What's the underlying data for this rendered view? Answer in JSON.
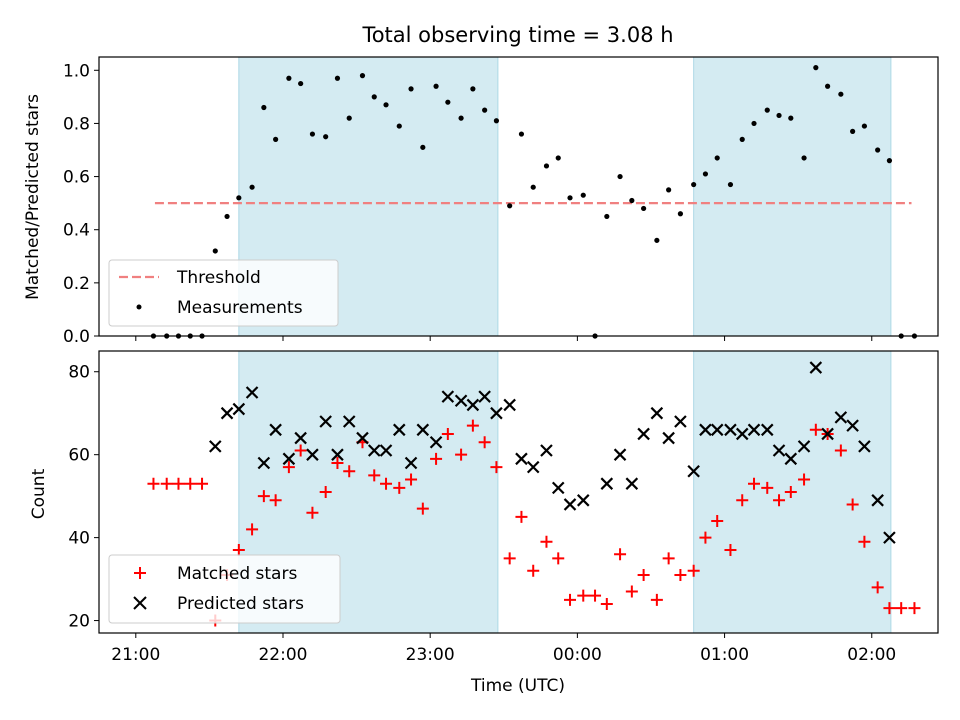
{
  "chart_data": {
    "title": "Total observing time = 3.08 h",
    "xlabel": "Time (UTC)",
    "x_unit": "hours since 21:00 UTC",
    "xlim": [
      -0.25,
      5.45
    ],
    "x_ticks": [
      {
        "value": 0,
        "label": "21:00"
      },
      {
        "value": 1,
        "label": "22:00"
      },
      {
        "value": 2,
        "label": "23:00"
      },
      {
        "value": 3,
        "label": "00:00"
      },
      {
        "value": 4,
        "label": "01:00"
      },
      {
        "value": 5,
        "label": "02:00"
      }
    ],
    "shaded_intervals": [
      [
        0.7,
        2.46
      ],
      [
        3.79,
        5.13
      ]
    ],
    "shade_color": "#add8e6",
    "panels": [
      {
        "type": "scatter",
        "ylabel": "Matched/Predicted stars",
        "ylim": [
          0,
          1.05
        ],
        "y_ticks": [
          0.0,
          0.2,
          0.4,
          0.6,
          0.8,
          1.0
        ],
        "y_tick_labels": [
          "0.0",
          "0.2",
          "0.4",
          "0.6",
          "0.8",
          "1.0"
        ],
        "legend": {
          "position": "lower left",
          "threshold_label": "Threshold",
          "measurements_label": "Measurements"
        },
        "threshold": {
          "value": 0.5,
          "x_range": [
            0.13,
            5.27
          ],
          "color": "#f08080"
        },
        "measurements": {
          "color": "#000000",
          "x": [
            0.12,
            0.21,
            0.29,
            0.37,
            0.45,
            0.54,
            0.62,
            0.7,
            0.79,
            0.87,
            0.95,
            1.04,
            1.12,
            1.2,
            1.29,
            1.37,
            1.45,
            1.54,
            1.62,
            1.7,
            1.79,
            1.87,
            1.95,
            2.04,
            2.12,
            2.21,
            2.29,
            2.37,
            2.45,
            2.54,
            2.62,
            2.7,
            2.79,
            2.87,
            2.95,
            3.04,
            3.12,
            3.2,
            3.29,
            3.37,
            3.45,
            3.54,
            3.62,
            3.7,
            3.79,
            3.87,
            3.95,
            4.04,
            4.12,
            4.2,
            4.29,
            4.37,
            4.45,
            4.54,
            4.62,
            4.7,
            4.79,
            4.87,
            4.95,
            5.04,
            5.12,
            5.2,
            5.29
          ],
          "y": [
            0.0,
            0.0,
            0.0,
            0.0,
            0.0,
            0.32,
            0.45,
            0.52,
            0.56,
            0.86,
            0.74,
            0.97,
            0.95,
            0.76,
            0.75,
            0.97,
            0.82,
            0.98,
            0.9,
            0.87,
            0.79,
            0.93,
            0.71,
            0.94,
            0.88,
            0.82,
            0.93,
            0.85,
            0.81,
            0.49,
            0.76,
            0.56,
            0.64,
            0.67,
            0.52,
            0.53,
            0.0,
            0.45,
            0.6,
            0.51,
            0.48,
            0.36,
            0.55,
            0.46,
            0.57,
            0.61,
            0.67,
            0.57,
            0.74,
            0.8,
            0.85,
            0.83,
            0.82,
            0.67,
            1.01,
            0.94,
            0.91,
            0.77,
            0.79,
            0.7,
            0.66,
            0.0,
            0.0
          ]
        }
      },
      {
        "type": "scatter",
        "ylabel": "Count",
        "ylim": [
          17,
          85
        ],
        "y_ticks": [
          20,
          40,
          60,
          80
        ],
        "y_tick_labels": [
          "20",
          "40",
          "60",
          "80"
        ],
        "legend": {
          "position": "lower left"
        },
        "series": [
          {
            "name": "Matched stars",
            "marker": "+",
            "color": "#ff0000",
            "x": [
              0.12,
              0.21,
              0.29,
              0.37,
              0.45,
              0.54,
              0.62,
              0.7,
              0.79,
              0.87,
              0.95,
              1.04,
              1.12,
              1.2,
              1.29,
              1.37,
              1.45,
              1.54,
              1.62,
              1.7,
              1.79,
              1.87,
              1.95,
              2.04,
              2.12,
              2.21,
              2.29,
              2.37,
              2.45,
              2.54,
              2.62,
              2.7,
              2.79,
              2.87,
              2.95,
              3.04,
              3.12,
              3.2,
              3.29,
              3.37,
              3.45,
              3.54,
              3.62,
              3.7,
              3.79,
              3.87,
              3.95,
              4.04,
              4.12,
              4.2,
              4.29,
              4.37,
              4.45,
              4.54,
              4.62,
              4.7,
              4.79,
              4.87,
              4.95,
              5.04,
              5.12,
              5.2,
              5.29
            ],
            "y": [
              53,
              53,
              53,
              53,
              53,
              20,
              31,
              37,
              42,
              50,
              49,
              57,
              61,
              46,
              51,
              58,
              56,
              63,
              55,
              53,
              52,
              54,
              47,
              59,
              65,
              60,
              67,
              63,
              57,
              35,
              45,
              32,
              39,
              35,
              25,
              26,
              26,
              24,
              36,
              27,
              31,
              25,
              35,
              31,
              32,
              40,
              44,
              37,
              49,
              53,
              52,
              49,
              51,
              54,
              66,
              65,
              61,
              48,
              39,
              28,
              23,
              23,
              23
            ]
          },
          {
            "name": "Predicted stars",
            "marker": "x",
            "color": "#000000",
            "x": [
              0.54,
              0.62,
              0.7,
              0.79,
              0.87,
              0.95,
              1.04,
              1.12,
              1.2,
              1.29,
              1.37,
              1.45,
              1.54,
              1.62,
              1.7,
              1.79,
              1.87,
              1.95,
              2.04,
              2.12,
              2.21,
              2.29,
              2.37,
              2.45,
              2.54,
              2.62,
              2.7,
              2.79,
              2.87,
              2.95,
              3.04,
              3.2,
              3.29,
              3.37,
              3.45,
              3.54,
              3.62,
              3.7,
              3.79,
              3.87,
              3.95,
              4.04,
              4.12,
              4.2,
              4.29,
              4.37,
              4.45,
              4.54,
              4.62,
              4.7,
              4.79,
              4.87,
              4.95,
              5.04,
              5.12
            ],
            "y": [
              62,
              70,
              71,
              75,
              58,
              66,
              59,
              64,
              60,
              68,
              60,
              68,
              64,
              61,
              61,
              66,
              58,
              66,
              63,
              74,
              73,
              72,
              74,
              70,
              72,
              59,
              57,
              61,
              52,
              48,
              49,
              53,
              60,
              53,
              65,
              70,
              64,
              68,
              56,
              66,
              66,
              66,
              65,
              66,
              66,
              61,
              59,
              62,
              81,
              65,
              69,
              67,
              62,
              49,
              40
            ]
          }
        ]
      }
    ]
  }
}
